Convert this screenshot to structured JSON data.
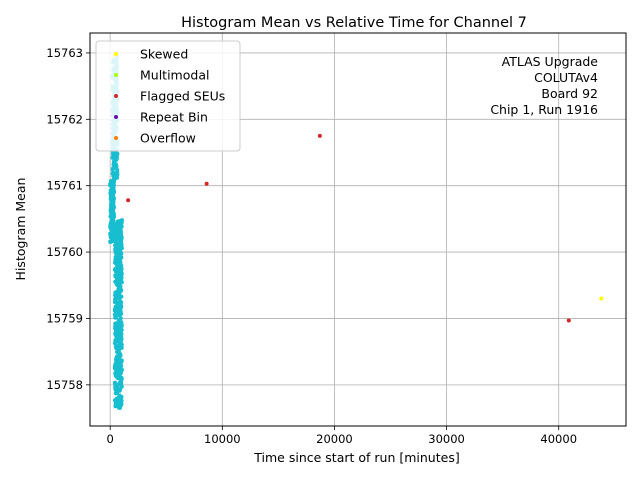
{
  "chart_data": {
    "type": "scatter",
    "title": "Histogram Mean vs Relative Time for Channel 7",
    "xlabel": "Time since start of run [minutes]",
    "ylabel": "Histogram Mean",
    "xlim": [
      -1800,
      46000
    ],
    "ylim": [
      15757.38,
      15763.3
    ],
    "xticks": [
      0,
      10000,
      20000,
      30000,
      40000
    ],
    "xtick_labels": [
      "0",
      "10000",
      "20000",
      "30000",
      "40000"
    ],
    "yticks": [
      15758,
      15759,
      15760,
      15761,
      15762,
      15763
    ],
    "ytick_labels": [
      "15758",
      "15759",
      "15760",
      "15761",
      "15762",
      "15763"
    ],
    "grid": true,
    "legend_position": "upper-left",
    "annotation_lines": [
      "ATLAS Upgrade",
      "COLUTAv4",
      "Board 92",
      "Chip 1, Run 1916"
    ],
    "series": [
      {
        "name": "Skewed",
        "color": "#ffff00",
        "points": [
          [
            43800,
            15759.3
          ],
          [
            300,
            15762.95
          ]
        ]
      },
      {
        "name": "Multimodal",
        "color": "#aaff00",
        "points": []
      },
      {
        "name": "Flagged SEUs",
        "color": "#d62728",
        "points": [
          [
            18700,
            15761.75
          ],
          [
            8600,
            15761.03
          ],
          [
            1600,
            15760.78
          ],
          [
            40900,
            15758.97
          ]
        ]
      },
      {
        "name": "Repeat Bin",
        "color": "#6a0dad",
        "points": []
      },
      {
        "name": "Overflow",
        "color": "#ff7f0e",
        "points": []
      },
      {
        "name": "",
        "color": "#17becf",
        "clusters": [
          {
            "x_range": [
              0,
              350
            ],
            "y_range": [
              15760.15,
              15761.1
            ],
            "count": 170
          },
          {
            "x_range": [
              200,
              650
            ],
            "y_range": [
              15761.1,
              15762.95
            ],
            "count": 220
          },
          {
            "x_range": [
              420,
              1050
            ],
            "y_range": [
              15757.65,
              15760.5
            ],
            "count": 450
          }
        ]
      }
    ]
  }
}
